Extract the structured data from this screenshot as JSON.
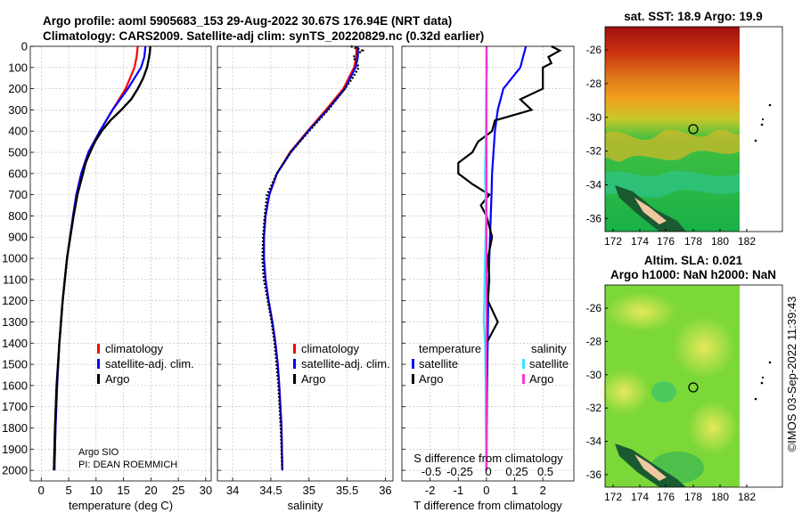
{
  "title_line1": "Argo profile: aoml 5905683_153 29-Aug-2022 30.67S 176.94E (NRT data)",
  "title_line2": "Climatology: CARS2009. Satellite-adj clim: synTS_20220829.nc (0.32d earlier)",
  "sst_title": "sat. SST: 18.9 Argo: 19.9",
  "sla_title_1": "Altim. SLA: 0.021",
  "sla_title_2": "Argo h1000: NaN h2000: NaN",
  "timestamp": "©IMOS 03-Sep-2022 11:39:43",
  "credit_1": "Argo SIO",
  "credit_2": "PI: DEAN ROEMMICH",
  "colors": {
    "climatology": "#ff0000",
    "satellite": "#0000ff",
    "argo": "#000000",
    "sal_satellite": "#33e6ff",
    "sal_argo": "#ff33cc"
  },
  "legend_temp": [
    "climatology",
    "satellite-adj. clim.",
    "Argo"
  ],
  "legend_sal": [
    "climatology",
    "satellite-adj. clim.",
    "Argo"
  ],
  "legend_diff": {
    "temp_header": "temperature",
    "sal_header": "salinity",
    "temp_items": [
      "satellite",
      "Argo"
    ],
    "sal_items": [
      "satellite",
      "Argo"
    ]
  },
  "chart_data": [
    {
      "type": "line",
      "name": "temperature",
      "xlabel": "temperature (deg C)",
      "ylabel": "depth",
      "xlim": [
        -2,
        31
      ],
      "ylim": [
        2050,
        0
      ],
      "xticks": [
        0,
        5,
        10,
        15,
        20,
        25,
        30
      ],
      "yticks": [
        0,
        100,
        200,
        300,
        400,
        500,
        600,
        700,
        800,
        900,
        1000,
        1100,
        1200,
        1300,
        1400,
        1500,
        1600,
        1700,
        1800,
        1900,
        2000
      ],
      "series": [
        {
          "name": "climatology",
          "depth": [
            0,
            50,
            100,
            200,
            300,
            400,
            500,
            600,
            700,
            800,
            1000,
            1200,
            1400,
            1600,
            1800,
            2000
          ],
          "values": [
            17.6,
            17.4,
            17,
            15.4,
            13,
            10.7,
            8.6,
            7.3,
            6.4,
            5.8,
            4.7,
            3.9,
            3.3,
            2.9,
            2.6,
            2.4
          ]
        },
        {
          "name": "satellite-adj. clim.",
          "depth": [
            0,
            50,
            100,
            200,
            300,
            400,
            500,
            600,
            700,
            800,
            1000,
            1200,
            1400,
            1600,
            1800,
            2000
          ],
          "values": [
            19,
            18.8,
            18.2,
            15.8,
            13,
            10.7,
            8.6,
            7.3,
            6.4,
            5.8,
            4.7,
            3.9,
            3.3,
            2.9,
            2.6,
            2.4
          ]
        },
        {
          "name": "Argo",
          "depth": [
            0,
            30,
            60,
            100,
            150,
            200,
            250,
            300,
            350,
            400,
            450,
            500,
            550,
            600,
            700,
            800,
            900,
            1000,
            1200,
            1400,
            1600,
            1800,
            2000
          ],
          "values": [
            19.9,
            19.8,
            19.6,
            19.3,
            18.6,
            17.6,
            16.4,
            14.6,
            12.6,
            11,
            9.8,
            8.9,
            8.1,
            7.6,
            6.6,
            5.9,
            5.3,
            4.7,
            3.9,
            3.3,
            2.8,
            2.5,
            2.3
          ]
        }
      ]
    },
    {
      "type": "line",
      "name": "salinity",
      "xlabel": "salinity",
      "xlim": [
        33.8,
        36.1
      ],
      "ylim": [
        2050,
        0
      ],
      "xticks": [
        34,
        34.5,
        35,
        35.5,
        36
      ],
      "series": [
        {
          "name": "climatology",
          "depth": [
            0,
            50,
            100,
            200,
            300,
            400,
            500,
            600,
            700,
            800,
            900,
            1000,
            1100,
            1200,
            1300,
            1400,
            1500,
            1600,
            1800,
            2000
          ],
          "values": [
            35.62,
            35.62,
            35.59,
            35.45,
            35.22,
            34.98,
            34.75,
            34.58,
            34.48,
            34.43,
            34.41,
            34.41,
            34.43,
            34.47,
            34.52,
            34.56,
            34.59,
            34.61,
            34.64,
            34.65
          ]
        },
        {
          "name": "satellite-adj. clim.",
          "depth": [
            0,
            50,
            100,
            200,
            300,
            400,
            500,
            600,
            700,
            800,
            900,
            1000,
            1100,
            1200,
            1300,
            1400,
            1500,
            1600,
            1800,
            2000
          ],
          "values": [
            35.64,
            35.64,
            35.61,
            35.47,
            35.24,
            34.99,
            34.76,
            34.58,
            34.48,
            34.43,
            34.41,
            34.41,
            34.43,
            34.47,
            34.52,
            34.56,
            34.59,
            34.61,
            34.64,
            34.65
          ]
        },
        {
          "name": "Argo",
          "depth": [
            0,
            20,
            50,
            80,
            100,
            150,
            200,
            300,
            400,
            500,
            600,
            700,
            800,
            900,
            1000,
            1100,
            1200,
            1300,
            1400,
            1600,
            1800,
            2000
          ],
          "values": [
            35.55,
            35.7,
            35.58,
            35.63,
            35.65,
            35.57,
            35.47,
            35.25,
            35,
            34.76,
            34.58,
            34.45,
            34.42,
            34.4,
            34.39,
            34.41,
            34.46,
            34.51,
            34.55,
            34.6,
            34.63,
            34.65
          ]
        }
      ]
    },
    {
      "type": "line",
      "name": "difference",
      "xlabel": "T difference from climatology",
      "top_label": "S difference from climatology",
      "xlim": [
        -3,
        3.1
      ],
      "ylim": [
        2050,
        0
      ],
      "xticks": [
        -2,
        -1,
        0,
        1,
        2
      ],
      "top_ticks": [
        "-0.5",
        "-0.25",
        "0",
        "0.25",
        "0.5"
      ],
      "series": [
        {
          "name": "temperature satellite",
          "depth": [
            0,
            50,
            100,
            200,
            300,
            400,
            500,
            600,
            700,
            800,
            1000,
            1200,
            1400,
            1600,
            1800,
            2000
          ],
          "values": [
            1.4,
            1.3,
            1.2,
            0.6,
            0.4,
            0.3,
            0.25,
            0.2,
            0.18,
            0.15,
            0.1,
            0.06,
            0.04,
            0.02,
            0.01,
            0
          ]
        },
        {
          "name": "temperature Argo",
          "depth": [
            0,
            20,
            50,
            80,
            100,
            150,
            200,
            250,
            300,
            350,
            400,
            450,
            500,
            550,
            600,
            650,
            700,
            750,
            800,
            850,
            900,
            1000,
            1100,
            1200,
            1300,
            1400,
            1600,
            1800,
            2000
          ],
          "values": [
            2.3,
            2.6,
            2.2,
            2.3,
            2,
            2,
            2,
            1.2,
            1.6,
            0.3,
            0.2,
            -0.3,
            -0.5,
            -1,
            -1,
            -0.5,
            0.1,
            -0.2,
            0,
            0.1,
            0.2,
            0.05,
            0.1,
            0.05,
            0.4,
            0,
            0,
            0,
            0
          ]
        },
        {
          "name": "salinity satellite",
          "depth": [
            0,
            100,
            200,
            400,
            600,
            800,
            1000,
            1200,
            1300,
            1400,
            1600,
            1800,
            2000
          ],
          "values": [
            0.01,
            0.02,
            -0.01,
            -0.02,
            -0.05,
            -0.02,
            -0.05,
            -0.08,
            -0.1,
            -0.05,
            -0.03,
            -0.02,
            0
          ]
        },
        {
          "name": "salinity Argo",
          "depth": [
            0,
            2000
          ],
          "values": [
            0,
            0
          ]
        }
      ]
    }
  ],
  "map_sst": {
    "xticks": [
      "172",
      "174",
      "176",
      "178",
      "180",
      "182"
    ],
    "yticks": [
      "-26",
      "-28",
      "-30",
      "-32",
      "-34",
      "-36"
    ]
  },
  "map_sla": {
    "xticks": [
      "172",
      "174",
      "176",
      "178",
      "180",
      "182"
    ],
    "yticks": [
      "-26",
      "-28",
      "-30",
      "-32",
      "-34",
      "-36"
    ]
  }
}
